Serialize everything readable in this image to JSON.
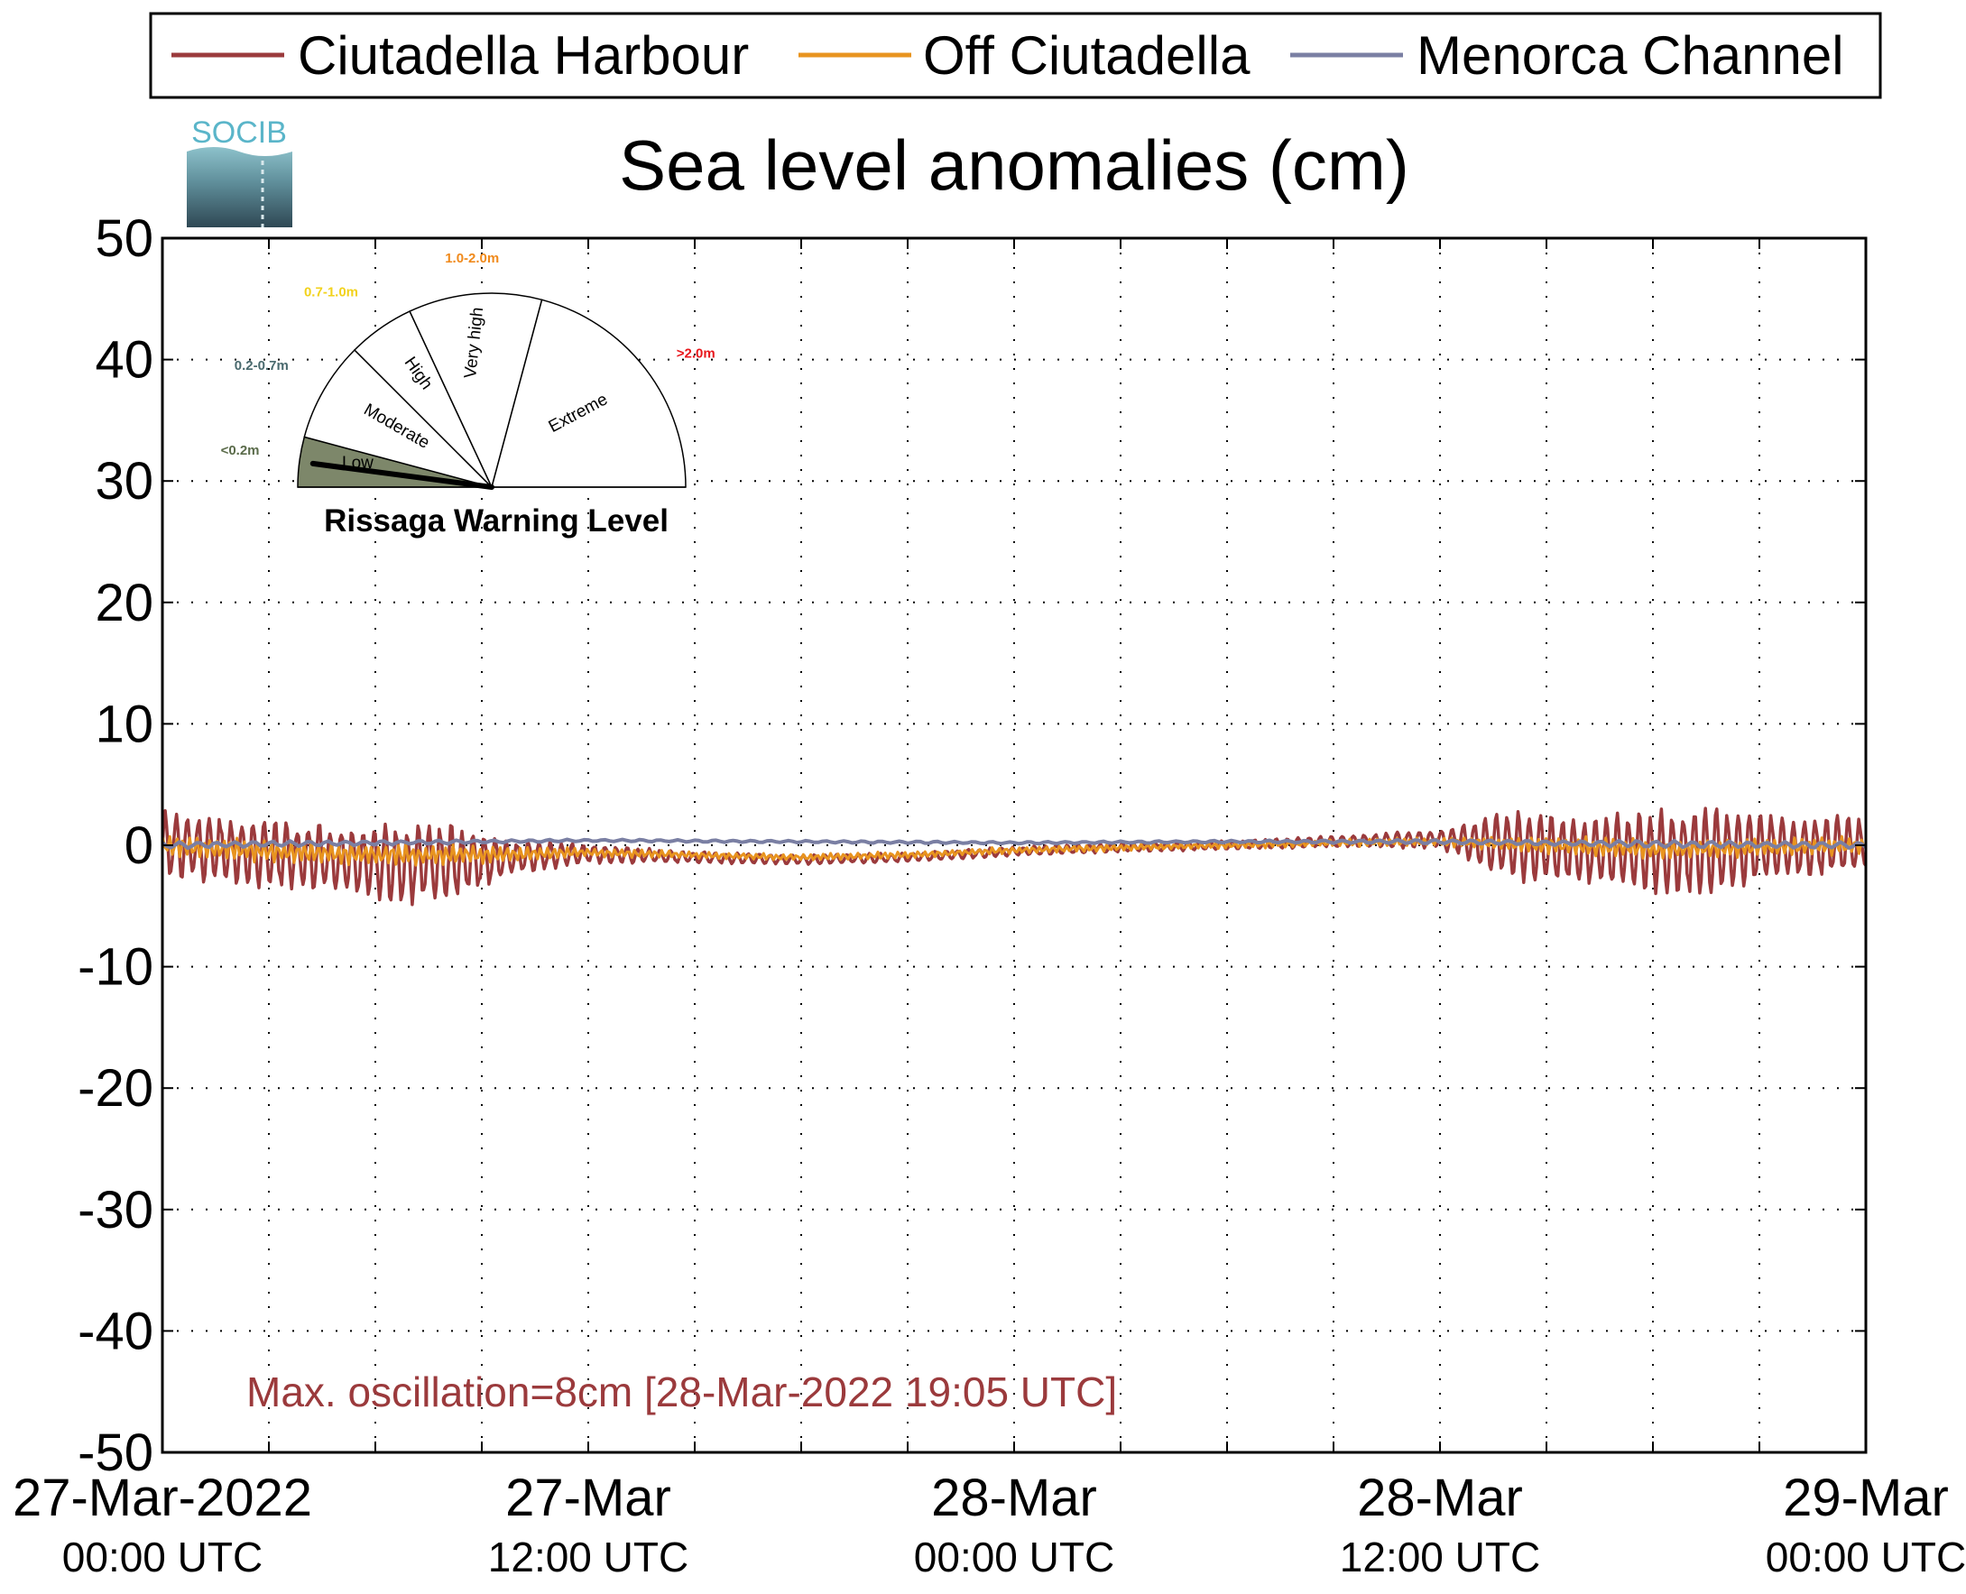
{
  "chart_data": {
    "type": "line",
    "title": "Sea level anomalies (cm)",
    "xlabel": "",
    "ylabel": "",
    "ylim": [
      -50,
      50
    ],
    "yticks": [
      50,
      40,
      30,
      20,
      10,
      0,
      -10,
      -20,
      -30,
      -40,
      -50
    ],
    "ytick_labels": [
      "50",
      "40",
      "30",
      "20",
      "10",
      "0",
      "-10",
      "-20",
      "-30",
      "-40",
      "-50"
    ],
    "xlim": [
      "2022-03-27 00:00",
      "2022-03-29 00:00"
    ],
    "x_minor_ticks_hours": 3,
    "xticks": [
      {
        "hour": 0,
        "line1": "27-Mar-2022",
        "line2": "00:00 UTC"
      },
      {
        "hour": 12,
        "line1": "27-Mar",
        "line2": "12:00 UTC"
      },
      {
        "hour": 24,
        "line1": "28-Mar",
        "line2": "00:00 UTC"
      },
      {
        "hour": 36,
        "line1": "28-Mar",
        "line2": "12:00 UTC"
      },
      {
        "hour": 48,
        "line1": "29-Mar",
        "line2": "00:00 UTC"
      }
    ],
    "grid": true,
    "legend_position": "top",
    "series": [
      {
        "name": "Ciutadella Harbour",
        "color": "#9b3a3c",
        "x": [
          "2022-03-27 00:00",
          "2022-03-27 02:00",
          "2022-03-27 04:00",
          "2022-03-27 06:00",
          "2022-03-27 08:00",
          "2022-03-27 10:00",
          "2022-03-27 12:00",
          "2022-03-27 15:00",
          "2022-03-27 18:00",
          "2022-03-27 21:00",
          "2022-03-28 00:00",
          "2022-03-28 03:00",
          "2022-03-28 06:00",
          "2022-03-28 09:00",
          "2022-03-28 12:00",
          "2022-03-28 14:00",
          "2022-03-28 16:00",
          "2022-03-28 18:00",
          "2022-03-28 19:05",
          "2022-03-28 21:00",
          "2022-03-29 00:00"
        ],
        "values": [
          0.0,
          -0.5,
          -1.0,
          -1.5,
          -1.5,
          -1.0,
          -0.7,
          -1.0,
          -1.2,
          -1.0,
          -0.5,
          -0.2,
          0.0,
          0.3,
          0.5,
          0.0,
          -0.5,
          -0.5,
          -0.5,
          -0.3,
          0.0
        ],
        "oscillation_amplitude": [
          3.0,
          3.0,
          3.0,
          3.5,
          3.5,
          1.5,
          0.8,
          0.5,
          0.4,
          0.4,
          0.4,
          0.4,
          0.4,
          0.5,
          0.8,
          3.0,
          3.0,
          3.5,
          4.0,
          3.0,
          2.5
        ]
      },
      {
        "name": "Off Ciutadella",
        "color": "#e8941f",
        "x": [
          "2022-03-27 00:00",
          "2022-03-27 03:00",
          "2022-03-27 06:00",
          "2022-03-27 09:00",
          "2022-03-27 12:00",
          "2022-03-27 15:00",
          "2022-03-27 18:00",
          "2022-03-27 21:00",
          "2022-03-28 00:00",
          "2022-03-28 03:00",
          "2022-03-28 06:00",
          "2022-03-28 09:00",
          "2022-03-28 12:00",
          "2022-03-28 15:00",
          "2022-03-28 18:00",
          "2022-03-28 21:00",
          "2022-03-29 00:00"
        ],
        "values": [
          0.0,
          -0.5,
          -0.8,
          -0.8,
          -0.6,
          -0.8,
          -1.0,
          -0.8,
          -0.4,
          -0.2,
          0.0,
          0.2,
          0.3,
          0.0,
          -0.3,
          -0.2,
          0.0
        ],
        "oscillation_amplitude": [
          1.0,
          1.0,
          1.0,
          0.8,
          0.4,
          0.3,
          0.3,
          0.3,
          0.3,
          0.3,
          0.3,
          0.3,
          0.4,
          0.8,
          0.9,
          0.8,
          0.8
        ]
      },
      {
        "name": "Menorca Channel",
        "color": "#7a7fa3",
        "x": [
          "2022-03-27 00:00",
          "2022-03-27 06:00",
          "2022-03-27 12:00",
          "2022-03-27 18:00",
          "2022-03-28 00:00",
          "2022-03-28 06:00",
          "2022-03-28 12:00",
          "2022-03-28 18:00",
          "2022-03-29 00:00"
        ],
        "values": [
          0.0,
          0.2,
          0.4,
          0.3,
          0.2,
          0.3,
          0.3,
          0.1,
          0.0
        ],
        "oscillation_amplitude": [
          0.3,
          0.2,
          0.1,
          0.1,
          0.1,
          0.1,
          0.2,
          0.3,
          0.3
        ]
      }
    ],
    "annotation": "Max. oscillation=8cm [28-Mar-2022 19:05 UTC]",
    "annotation_color": "#9b3a3c"
  },
  "logo": {
    "text": "SOCIB"
  },
  "gauge": {
    "title": "Rissaga Warning Level",
    "current_level": "Low",
    "segments": [
      {
        "label": "Low",
        "range": "<0.2m",
        "range_color": "#5a6b4a"
      },
      {
        "label": "Moderate",
        "range": "0.2-0.7m",
        "range_color": "#4a6a6e"
      },
      {
        "label": "High",
        "range": "0.7-1.0m",
        "range_color": "#f2d21b"
      },
      {
        "label": "Very high",
        "range": "1.0-2.0m",
        "range_color": "#f08a1c"
      },
      {
        "label": "Extreme",
        "range": ">2.0m",
        "range_color": "#e8161b"
      }
    ]
  }
}
